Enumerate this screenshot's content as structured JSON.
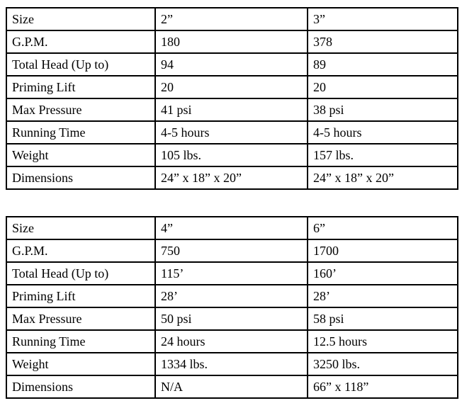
{
  "tables": [
    {
      "name": "small-pumps-spec-table",
      "rows": [
        [
          "Size",
          "2”",
          "3”"
        ],
        [
          "G.P.M.",
          "180",
          "378"
        ],
        [
          "Total Head (Up to)",
          "94",
          "89"
        ],
        [
          "Priming Lift",
          "20",
          "20"
        ],
        [
          "Max Pressure",
          "41 psi",
          "38 psi"
        ],
        [
          "Running Time",
          "4-5 hours",
          "4-5 hours"
        ],
        [
          "Weight",
          "105 lbs.",
          "157 lbs."
        ],
        [
          "Dimensions",
          "24” x 18” x 20”",
          "24” x 18” x 20”"
        ]
      ]
    },
    {
      "name": "large-pumps-spec-table",
      "rows": [
        [
          "Size",
          "4”",
          "6”"
        ],
        [
          "G.P.M.",
          "750",
          "1700"
        ],
        [
          "Total Head (Up to)",
          "115’",
          "160’"
        ],
        [
          "Priming Lift",
          "28’",
          "28’"
        ],
        [
          "Max Pressure",
          "50 psi",
          "58 psi"
        ],
        [
          "Running Time",
          "24 hours",
          "12.5 hours"
        ],
        [
          "Weight",
          "1334 lbs.",
          "3250 lbs."
        ],
        [
          "Dimensions",
          "N/A",
          "66” x 118”"
        ]
      ]
    }
  ],
  "colors": {
    "border": "#000000",
    "text": "#000000",
    "background": "#ffffff"
  }
}
